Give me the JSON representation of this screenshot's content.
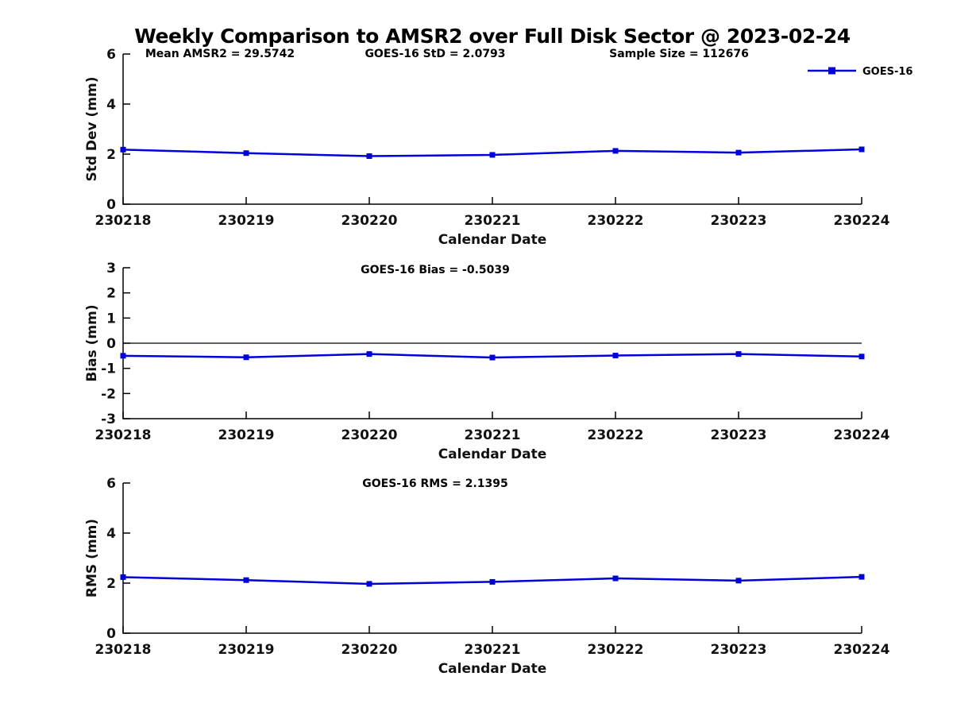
{
  "figure": {
    "title": "Weekly Comparison to AMSR2 over Full Disk Sector @ 2023-02-24",
    "background_color": "#ffffff",
    "axis_color": "#000000",
    "text_color": "#111111",
    "line_color": "#0000dd"
  },
  "legend": {
    "label": "GOES-16",
    "marker": "filled-square",
    "color": "#0000dd",
    "position": "top-right"
  },
  "chart_data": [
    {
      "type": "line",
      "name": "std-dev-subplot",
      "title": "",
      "annotations": [
        "Mean AMSR2 = 29.5742",
        "GOES-16 StD = 2.0793",
        "Sample Size = 112676"
      ],
      "xlabel": "Calendar Date",
      "ylabel": "Std Dev (mm)",
      "ylim": [
        0,
        6
      ],
      "yticks": [
        0,
        2,
        4,
        6
      ],
      "categories": [
        "230218",
        "230219",
        "230220",
        "230221",
        "230222",
        "230223",
        "230224"
      ],
      "series": [
        {
          "name": "GOES-16",
          "color": "#0000dd",
          "values": [
            2.18,
            2.04,
            1.92,
            1.97,
            2.13,
            2.06,
            2.19
          ]
        }
      ],
      "zero_line": false,
      "grid": false,
      "show_legend": true
    },
    {
      "type": "line",
      "name": "bias-subplot",
      "title": "",
      "annotations": [
        "GOES-16 Bias  = -0.5039"
      ],
      "xlabel": "Calendar Date",
      "ylabel": "Bias (mm)",
      "ylim": [
        -3,
        3
      ],
      "yticks": [
        -3,
        -2,
        -1,
        0,
        1,
        2,
        3
      ],
      "categories": [
        "230218",
        "230219",
        "230220",
        "230221",
        "230222",
        "230223",
        "230224"
      ],
      "series": [
        {
          "name": "GOES-16",
          "color": "#0000dd",
          "values": [
            -0.5,
            -0.56,
            -0.43,
            -0.57,
            -0.49,
            -0.43,
            -0.53
          ]
        }
      ],
      "zero_line": true,
      "grid": false,
      "show_legend": false
    },
    {
      "type": "line",
      "name": "rms-subplot",
      "title": "",
      "annotations": [
        "GOES-16 RMS = 2.1395"
      ],
      "xlabel": "Calendar Date",
      "ylabel": "RMS (mm)",
      "ylim": [
        0,
        6
      ],
      "yticks": [
        0,
        2,
        4,
        6
      ],
      "categories": [
        "230218",
        "230219",
        "230220",
        "230221",
        "230222",
        "230223",
        "230224"
      ],
      "series": [
        {
          "name": "GOES-16",
          "color": "#0000dd",
          "values": [
            2.24,
            2.12,
            1.97,
            2.05,
            2.19,
            2.1,
            2.25
          ]
        }
      ],
      "zero_line": false,
      "grid": false,
      "show_legend": false
    }
  ]
}
